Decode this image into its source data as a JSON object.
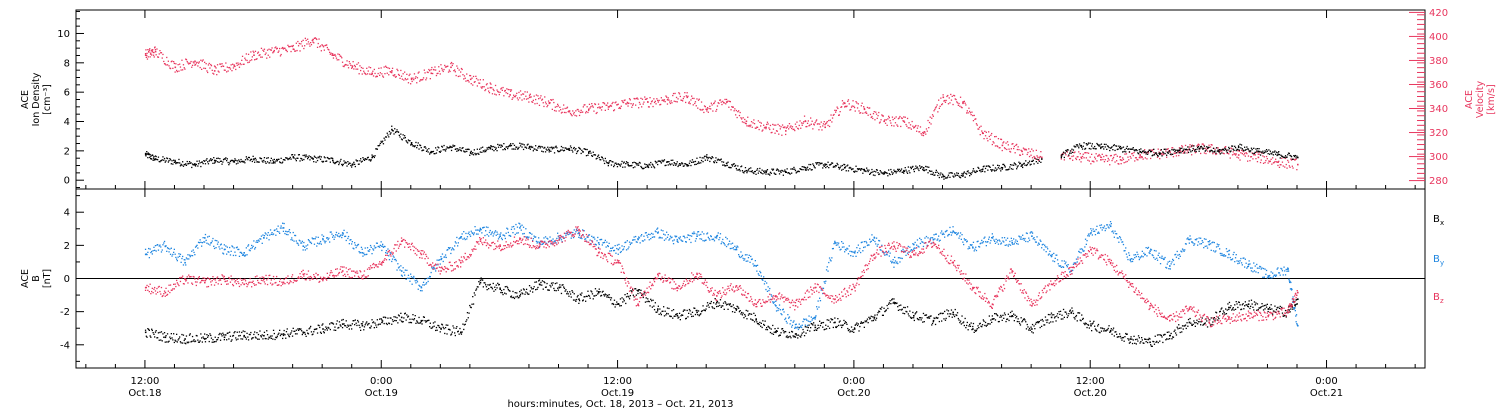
{
  "chart_data": [
    {
      "type": "scatter",
      "panel": "top",
      "left_axis": {
        "label_lines": [
          "ACE",
          "Ion Density",
          "[cm⁻³]"
        ],
        "ticks": [
          0,
          2,
          4,
          6,
          8,
          10
        ],
        "ylim": [
          -0.6,
          11.6
        ],
        "color": "#000000"
      },
      "right_axis": {
        "label_lines": [
          "ACE",
          "Velocity",
          "[km/s]"
        ],
        "ticks": [
          280,
          300,
          320,
          340,
          360,
          380,
          400,
          420
        ],
        "ylim": [
          273,
          422
        ],
        "color": "#e8365e"
      },
      "series": [
        {
          "name": "Ion Density",
          "axis": "left",
          "color": "#000000",
          "x": [
            0,
            1,
            3,
            5,
            7,
            9,
            11,
            13,
            15,
            17,
            19,
            21,
            23,
            25,
            27,
            29,
            31,
            33,
            35,
            37,
            39,
            41,
            43,
            45,
            47,
            49,
            51,
            53,
            55,
            57,
            59,
            61,
            63,
            65,
            67,
            69,
            71,
            73,
            75,
            77,
            79,
            81,
            83,
            85,
            87,
            89,
            91
          ],
          "y": [
            1.8,
            1.5,
            1.3,
            1.1,
            1.4,
            1.3,
            1.5,
            1.3,
            1.6,
            1.5,
            1.4,
            1.1,
            1.6,
            3.5,
            2.6,
            2.0,
            2.3,
            1.9,
            2.2,
            2.4,
            2.3,
            2.1,
            2.2,
            1.9,
            1.2,
            1.1,
            1.0,
            1.3,
            1.1,
            1.6,
            1.2,
            0.7,
            0.6,
            0.6,
            0.9,
            1.1,
            0.9,
            0.7,
            0.5,
            0.7,
            0.9,
            0.3,
            0.4,
            0.8,
            0.9,
            1.1,
            1.5
          ]
        },
        {
          "name": "Velocity",
          "axis": "right",
          "color": "#e8365e",
          "x": [
            0,
            1,
            3,
            5,
            7,
            9,
            11,
            13,
            15,
            17,
            19,
            21,
            23,
            25,
            27,
            29,
            31,
            33,
            35,
            37,
            39,
            41,
            43,
            45,
            47,
            49,
            51,
            53,
            55,
            57,
            59,
            61,
            63,
            65,
            67,
            69,
            71,
            73,
            75,
            77,
            79,
            81,
            83,
            85,
            87,
            89,
            91
          ],
          "y": [
            385,
            388,
            375,
            380,
            372,
            376,
            385,
            388,
            390,
            398,
            385,
            376,
            370,
            372,
            365,
            370,
            375,
            365,
            358,
            352,
            350,
            345,
            338,
            340,
            342,
            345,
            346,
            348,
            350,
            340,
            346,
            330,
            325,
            322,
            330,
            325,
            345,
            340,
            330,
            330,
            320,
            350,
            345,
            320,
            310,
            305,
            300
          ]
        },
        {
          "name": "Velocity (late)",
          "axis": "right",
          "color": "#e8365e",
          "x": [
            93,
            95,
            97,
            99,
            101,
            103,
            105,
            107,
            109,
            111,
            113,
            115,
            117
          ],
          "y": [
            302,
            300,
            298,
            298,
            302,
            303,
            305,
            307,
            306,
            302,
            300,
            296,
            294
          ]
        },
        {
          "name": "Ion Density (late)",
          "axis": "left",
          "color": "#000000",
          "x": [
            93,
            95,
            97,
            99,
            101,
            103,
            105,
            107,
            109,
            111,
            113,
            115,
            117
          ],
          "y": [
            1.7,
            2.4,
            2.3,
            2.2,
            2.0,
            1.9,
            2.1,
            2.2,
            2.0,
            2.3,
            2.0,
            1.8,
            1.6
          ]
        }
      ]
    },
    {
      "type": "scatter",
      "panel": "bottom",
      "left_axis": {
        "label_lines": [
          "ACE",
          "B",
          "[nT]"
        ],
        "ticks": [
          -4,
          -2,
          0,
          2,
          4
        ],
        "ylim": [
          -5.4,
          5.4
        ],
        "color": "#000000"
      },
      "zero_line": true,
      "legend": [
        {
          "label": "Bx",
          "main": "B",
          "sub": "x",
          "color": "#000000"
        },
        {
          "label": "By",
          "main": "B",
          "sub": "y",
          "color": "#1f86e0"
        },
        {
          "label": "Bz",
          "main": "B",
          "sub": "z",
          "color": "#e8365e"
        }
      ],
      "series": [
        {
          "name": "Bx",
          "color": "#000000",
          "x": [
            0,
            2,
            4,
            6,
            8,
            10,
            12,
            14,
            16,
            18,
            20,
            22,
            24,
            26,
            28,
            30,
            32,
            34,
            36,
            38,
            40,
            42,
            44,
            46,
            48,
            50,
            52,
            54,
            56,
            58,
            60,
            62,
            64,
            66,
            68,
            70,
            72,
            74,
            76,
            78,
            80,
            82,
            84,
            86,
            88,
            90,
            92,
            94,
            96,
            98,
            100,
            102,
            104,
            106,
            108,
            110,
            112,
            114,
            116,
            117
          ],
          "y": [
            -3.2,
            -3.5,
            -3.6,
            -3.6,
            -3.5,
            -3.4,
            -3.4,
            -3.3,
            -3.2,
            -3.0,
            -2.7,
            -2.8,
            -2.6,
            -2.3,
            -2.5,
            -3.0,
            -3.2,
            -0.2,
            -0.6,
            -1.0,
            -0.3,
            -0.5,
            -1.2,
            -0.8,
            -1.5,
            -0.7,
            -1.8,
            -2.2,
            -2.0,
            -1.4,
            -1.8,
            -2.4,
            -3.2,
            -3.3,
            -2.9,
            -2.6,
            -3.0,
            -2.3,
            -1.4,
            -2.2,
            -2.5,
            -2.0,
            -3.0,
            -2.4,
            -2.2,
            -3.0,
            -2.3,
            -2.0,
            -2.8,
            -3.1,
            -3.6,
            -3.8,
            -3.4,
            -2.6,
            -2.6,
            -1.7,
            -1.5,
            -1.8,
            -2.0,
            -1.2
          ]
        },
        {
          "name": "By",
          "color": "#1f86e0",
          "x": [
            0,
            2,
            4,
            6,
            8,
            10,
            12,
            14,
            16,
            18,
            20,
            22,
            24,
            26,
            28,
            30,
            32,
            34,
            36,
            38,
            40,
            42,
            44,
            46,
            48,
            50,
            52,
            54,
            56,
            58,
            60,
            62,
            64,
            66,
            68,
            70,
            72,
            74,
            76,
            78,
            80,
            82,
            84,
            86,
            88,
            90,
            92,
            94,
            96,
            98,
            100,
            102,
            104,
            106,
            108,
            110,
            112,
            114,
            116,
            117
          ],
          "y": [
            1.5,
            2.0,
            1.0,
            2.5,
            1.8,
            1.6,
            2.5,
            3.1,
            2.0,
            2.4,
            2.8,
            1.6,
            2.0,
            0.5,
            -0.5,
            1.2,
            2.5,
            3.0,
            2.6,
            3.1,
            2.2,
            2.5,
            2.8,
            2.2,
            1.8,
            2.4,
            2.8,
            2.3,
            2.6,
            2.6,
            1.8,
            0.8,
            -1.6,
            -2.9,
            -2.3,
            2.2,
            1.6,
            2.5,
            1.0,
            2.1,
            2.4,
            2.9,
            1.9,
            2.5,
            2.2,
            2.6,
            1.4,
            0.5,
            2.8,
            3.2,
            1.2,
            1.7,
            0.8,
            2.4,
            2.1,
            1.5,
            0.9,
            0.2,
            0.6,
            -2.8
          ]
        },
        {
          "name": "Bz",
          "color": "#e8365e",
          "x": [
            0,
            2,
            4,
            6,
            8,
            10,
            12,
            14,
            16,
            18,
            20,
            22,
            24,
            26,
            28,
            30,
            32,
            34,
            36,
            38,
            40,
            42,
            44,
            46,
            48,
            50,
            52,
            54,
            56,
            58,
            60,
            62,
            64,
            66,
            68,
            70,
            72,
            74,
            76,
            78,
            80,
            82,
            84,
            86,
            88,
            90,
            92,
            94,
            96,
            98,
            100,
            102,
            104,
            106,
            108,
            110,
            112,
            114,
            116,
            117
          ],
          "y": [
            -0.5,
            -0.8,
            0.0,
            -0.2,
            0.0,
            -0.3,
            0.0,
            -0.2,
            0.3,
            0.0,
            0.5,
            0.2,
            1.0,
            2.3,
            1.5,
            0.5,
            1.0,
            2.3,
            2.0,
            2.4,
            2.0,
            2.4,
            3.0,
            1.6,
            1.0,
            -1.5,
            0.3,
            -0.5,
            0.3,
            -1.0,
            -0.4,
            -1.5,
            -1.0,
            -1.6,
            -0.5,
            -1.2,
            -0.5,
            1.5,
            2.0,
            1.5,
            2.2,
            1.0,
            -0.5,
            -1.5,
            0.5,
            -1.6,
            -0.3,
            0.5,
            1.8,
            1.0,
            -0.3,
            -1.6,
            -2.5,
            -1.8,
            -2.6,
            -2.4,
            -2.2,
            -2.2,
            -2.0,
            -0.8
          ]
        }
      ]
    }
  ],
  "x_axis": {
    "ticks": [
      {
        "x": 0,
        "lines": [
          "12:00",
          "Oct.18"
        ]
      },
      {
        "x": 24,
        "lines": [
          "0:00",
          "Oct.19"
        ]
      },
      {
        "x": 48,
        "lines": [
          "12:00",
          "Oct.19"
        ]
      },
      {
        "x": 72,
        "lines": [
          "0:00",
          "Oct.20"
        ]
      },
      {
        "x": 96,
        "lines": [
          "12:00",
          "Oct.20"
        ]
      },
      {
        "x": 120,
        "lines": [
          "0:00",
          "Oct.21"
        ]
      }
    ],
    "xlim": [
      -7,
      130
    ],
    "label": "hours:minutes, Oct. 18, 2013 – Oct. 21, 2013"
  }
}
